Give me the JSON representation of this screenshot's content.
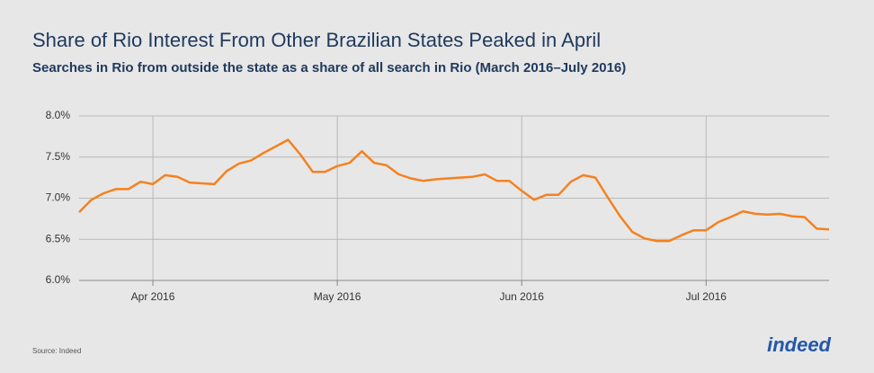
{
  "chart_data": {
    "type": "line",
    "title": "Share of Rio Interest From Other Brazilian States Peaked in April",
    "subtitle": "Searches in Rio from outside the state as a share of all search in Rio (March 2016–July 2016)",
    "source": "Source: Indeed",
    "logo": "indeed",
    "categories": [
      null,
      null,
      null,
      null,
      null,
      null,
      "Apr 2016",
      null,
      null,
      null,
      null,
      null,
      null,
      null,
      null,
      null,
      null,
      null,
      null,
      null,
      null,
      "May 2016",
      null,
      null,
      null,
      null,
      null,
      null,
      null,
      null,
      null,
      null,
      null,
      null,
      null,
      null,
      "Jun 2016",
      null,
      null,
      null,
      null,
      null,
      null,
      null,
      null,
      null,
      null,
      null,
      null,
      null,
      null,
      "Jul 2016",
      null,
      null,
      null,
      null,
      null,
      null,
      null,
      null,
      null,
      null
    ],
    "series": [
      {
        "color": "#f5811f",
        "values": [
          6.83,
          6.98,
          7.06,
          7.11,
          7.11,
          7.2,
          7.17,
          7.28,
          7.26,
          7.19,
          7.18,
          7.17,
          7.33,
          7.42,
          7.46,
          7.55,
          7.63,
          7.71,
          7.53,
          7.32,
          7.32,
          7.39,
          7.43,
          7.57,
          7.43,
          7.4,
          7.29,
          7.24,
          7.21,
          7.23,
          7.24,
          7.25,
          7.26,
          7.29,
          7.21,
          7.21,
          7.09,
          6.98,
          7.04,
          7.04,
          7.2,
          7.28,
          7.25,
          7.01,
          6.78,
          6.59,
          6.51,
          6.48,
          6.48,
          6.55,
          6.61,
          6.61,
          6.71,
          6.77,
          6.84,
          6.81,
          6.8,
          6.81,
          6.78,
          6.77,
          6.63,
          6.62
        ]
      }
    ],
    "ylim": [
      6,
      8
    ],
    "yticks": [
      {
        "value": 6,
        "label": "6.0%"
      },
      {
        "value": 6.5,
        "label": "6.5%"
      },
      {
        "value": 7,
        "label": "7.0%"
      },
      {
        "value": 7.5,
        "label": "7.5%"
      },
      {
        "value": 8,
        "label": "8.0%"
      }
    ],
    "grid": true
  }
}
